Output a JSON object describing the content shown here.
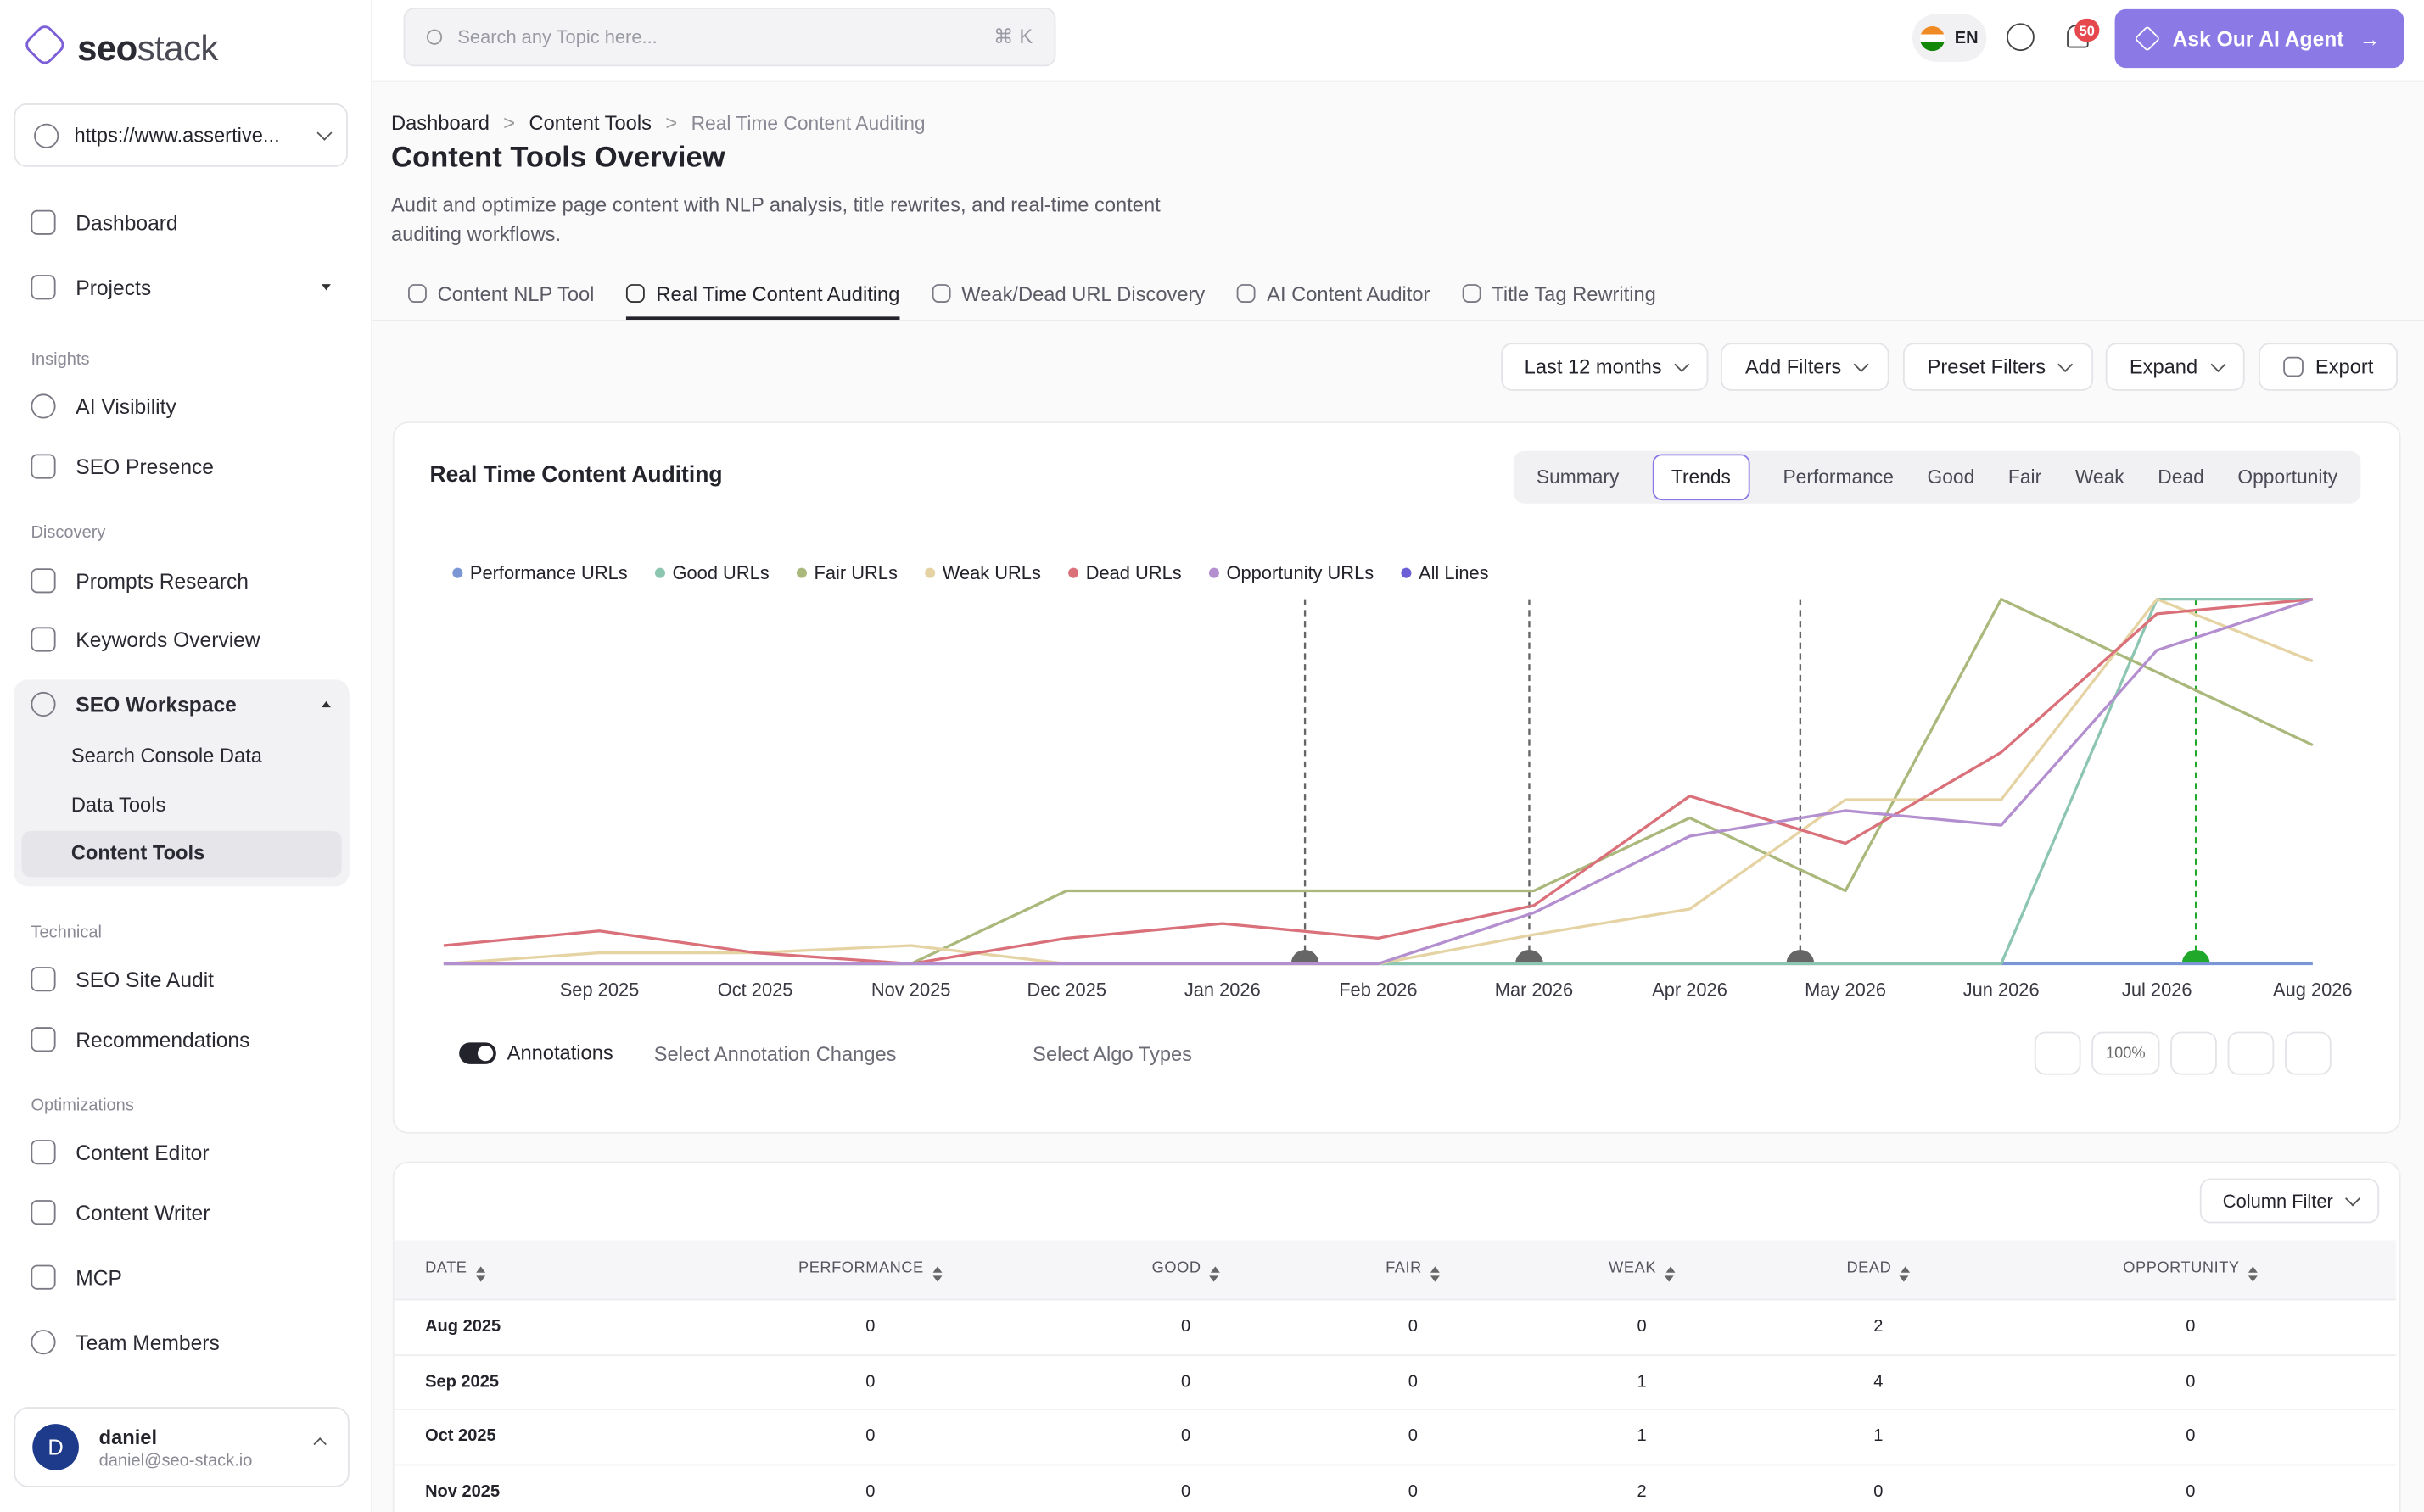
{
  "header": {
    "search_placeholder": "Search any Topic here...",
    "shortcut": "⌘ K",
    "language": "EN",
    "notifications": "50",
    "ai_button": "Ask Our AI Agent"
  },
  "sidebar": {
    "brand_a": "seo",
    "brand_b": "stack",
    "site": "https://www.assertive...",
    "top": [
      "Dashboard",
      "Projects"
    ],
    "sections": [
      {
        "title": "Insights",
        "items": [
          "AI Visibility",
          "SEO Presence"
        ]
      },
      {
        "title": "Discovery",
        "items": [
          "Prompts Research",
          "Keywords Overview"
        ]
      },
      {
        "title": "Technical",
        "items": [
          "SEO Site Audit",
          "Recommendations"
        ]
      },
      {
        "title": "Optimizations",
        "items": [
          "Content Editor",
          "Content Writer",
          "MCP",
          "Team Members"
        ]
      }
    ],
    "workspace": {
      "label": "SEO Workspace",
      "items": [
        "Search Console Data",
        "Data Tools",
        "Content Tools"
      ]
    },
    "user": {
      "initial": "D",
      "name": "daniel",
      "email": "daniel@seo-stack.io"
    }
  },
  "breadcrumbs": [
    "Dashboard",
    "Content Tools",
    "Real Time Content Auditing"
  ],
  "page": {
    "title": "Content Tools Overview",
    "description": "Audit and optimize page content with NLP analysis, title rewrites, and real-time content auditing workflows."
  },
  "tabs": [
    "Content NLP Tool",
    "Real Time Content Auditing",
    "Weak/Dead URL Discovery",
    "AI Content Auditor",
    "Title Tag Rewriting"
  ],
  "filters": [
    "Last 12 months",
    "Add Filters",
    "Preset Filters",
    "Expand",
    "Export"
  ],
  "card": {
    "title": "Real Time Content Auditing",
    "views": [
      "Summary",
      "Trends",
      "Performance",
      "Good",
      "Fair",
      "Weak",
      "Dead",
      "Opportunity"
    ],
    "annotations_toggle": "Annotations",
    "annotation_select": "Select Annotation Changes",
    "algo_select": "Select Algo Types",
    "zoom": "100%"
  },
  "chart_data": {
    "type": "line",
    "ylim": [
      0,
      100
    ],
    "categories": [
      null,
      "Sep 2025",
      "Oct 2025",
      "Nov 2025",
      "Dec 2025",
      "Jan 2026",
      "Feb 2026",
      "Mar 2026",
      "Apr 2026",
      "May 2026",
      "Jun 2026",
      "Jul 2026",
      "Aug 2026"
    ],
    "series": [
      {
        "name": "Performance URLs",
        "color": "#7b96d4",
        "values": [
          0,
          0,
          0,
          0,
          0,
          0,
          0,
          0,
          0,
          0,
          0,
          0,
          0
        ]
      },
      {
        "name": "Good URLs",
        "color": "#8cc5b0",
        "values": [
          0,
          0,
          0,
          0,
          0,
          0,
          0,
          0,
          0,
          0,
          0,
          100,
          100
        ]
      },
      {
        "name": "Fair URLs",
        "color": "#aab87c",
        "values": [
          0,
          0,
          0,
          0,
          20,
          20,
          20,
          20,
          40,
          20,
          100,
          80,
          60
        ]
      },
      {
        "name": "Weak URLs",
        "color": "#e5d3a4",
        "values": [
          0,
          3,
          3,
          5,
          0,
          0,
          0,
          8,
          15,
          45,
          45,
          100,
          83
        ]
      },
      {
        "name": "Dead URLs",
        "color": "#d9707a",
        "values": [
          5,
          9,
          3,
          0,
          7,
          11,
          7,
          16,
          46,
          33,
          58,
          96,
          100
        ]
      },
      {
        "name": "Opportunity URLs",
        "color": "#b48fd0",
        "values": [
          0,
          0,
          0,
          0,
          0,
          0,
          0,
          14,
          35,
          42,
          38,
          86,
          100
        ]
      }
    ],
    "legend_extra": {
      "name": "All Lines",
      "color": "#6b5fd8"
    },
    "annotations": [
      {
        "x": 5.53,
        "color": "#666666"
      },
      {
        "x": 6.97,
        "color": "#666666"
      },
      {
        "x": 8.71,
        "color": "#666666"
      },
      {
        "x": 11.25,
        "color": "#1fa82a"
      }
    ]
  },
  "table": {
    "column_filter": "Column Filter",
    "columns": [
      "DATE",
      "PERFORMANCE",
      "GOOD",
      "FAIR",
      "WEAK",
      "DEAD",
      "OPPORTUNITY"
    ],
    "rows": [
      [
        "Aug 2025",
        0,
        0,
        0,
        0,
        2,
        0
      ],
      [
        "Sep 2025",
        0,
        0,
        0,
        1,
        4,
        0
      ],
      [
        "Oct 2025",
        0,
        0,
        0,
        1,
        1,
        0
      ],
      [
        "Nov 2025",
        0,
        0,
        0,
        2,
        0,
        0
      ]
    ]
  }
}
